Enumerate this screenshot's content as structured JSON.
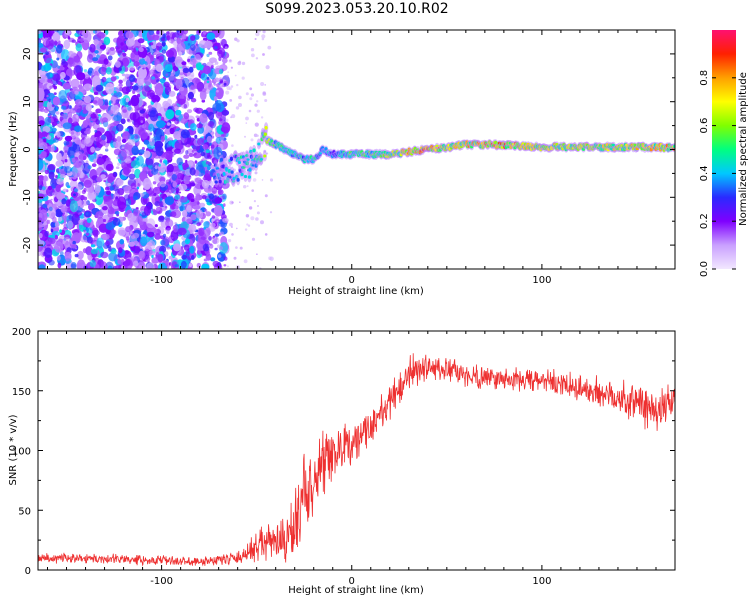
{
  "title": "S099.2023.053.20.10.R02",
  "colors": {
    "snr_line": "#ee3030",
    "spectrogram_low": "#7a2cf0",
    "colorbar_stops": [
      "#f2e8ff",
      "#c9a0ff",
      "#7f00ff",
      "#2a2aff",
      "#00c8ff",
      "#00ff80",
      "#80ff00",
      "#ffff00",
      "#ffa000",
      "#ff2000",
      "#ff1070"
    ]
  },
  "chart_data": [
    {
      "type": "heatmap",
      "name": "spectrogram",
      "xlabel": "Height of straight line (km)",
      "ylabel": "Frequency (Hz)",
      "xlim": [
        -165,
        170
      ],
      "ylim": [
        -25,
        25
      ],
      "xticks": [
        -100,
        0,
        100
      ],
      "yticks": [
        -20,
        -10,
        0,
        10,
        20
      ],
      "colorbar": {
        "label": "Normalized spectral amplitude",
        "range": [
          0,
          1
        ],
        "ticks": [
          0.0,
          0.2,
          0.4,
          0.6,
          0.8
        ]
      },
      "noise_region_x": [
        -165,
        -72
      ],
      "ridge": {
        "x": [
          -72,
          -60,
          -50,
          -45,
          -40,
          -35,
          -30,
          -25,
          -20,
          -15,
          -10,
          -5,
          0,
          20,
          40,
          50,
          60,
          80,
          100,
          120,
          140,
          160,
          170
        ],
        "y": [
          -5,
          -4,
          -2,
          2,
          1,
          0,
          -1,
          -2,
          -2,
          0,
          -1,
          -1,
          -1,
          -1,
          0,
          0.5,
          1,
          1,
          0.5,
          0.5,
          0.5,
          0.5,
          0.3
        ],
        "amplitude": [
          0.4,
          0.45,
          0.5,
          0.65,
          0.55,
          0.5,
          0.45,
          0.5,
          0.5,
          0.45,
          0.4,
          0.45,
          0.55,
          0.65,
          0.85,
          0.7,
          0.75,
          0.85,
          0.7,
          0.7,
          0.7,
          0.75,
          0.8
        ]
      }
    },
    {
      "type": "line",
      "name": "snr",
      "xlabel": "Height of straight line (km)",
      "ylabel": "SNR (10 * v/v)",
      "xlim": [
        -165,
        170
      ],
      "ylim": [
        0,
        200
      ],
      "xticks": [
        -100,
        0,
        100
      ],
      "yticks": [
        0,
        50,
        100,
        150,
        200
      ],
      "series": [
        {
          "x": [
            -165,
            -140,
            -120,
            -100,
            -80,
            -60,
            -55,
            -50,
            -45,
            -40,
            -35,
            -30,
            -25,
            -20,
            -15,
            -10,
            -5,
            0,
            10,
            20,
            30,
            40,
            50,
            60,
            80,
            100,
            120,
            140,
            150,
            160,
            170
          ],
          "y": [
            10,
            10,
            9,
            8,
            7,
            10,
            14,
            20,
            22,
            25,
            20,
            40,
            60,
            75,
            85,
            95,
            100,
            105,
            120,
            140,
            165,
            170,
            167,
            163,
            160,
            158,
            152,
            145,
            140,
            135,
            138
          ],
          "noise": [
            4,
            4,
            4,
            4,
            4,
            5,
            8,
            14,
            16,
            18,
            20,
            30,
            35,
            30,
            28,
            25,
            22,
            18,
            15,
            15,
            15,
            12,
            10,
            10,
            10,
            10,
            12,
            15,
            20,
            22,
            15
          ]
        }
      ]
    }
  ]
}
